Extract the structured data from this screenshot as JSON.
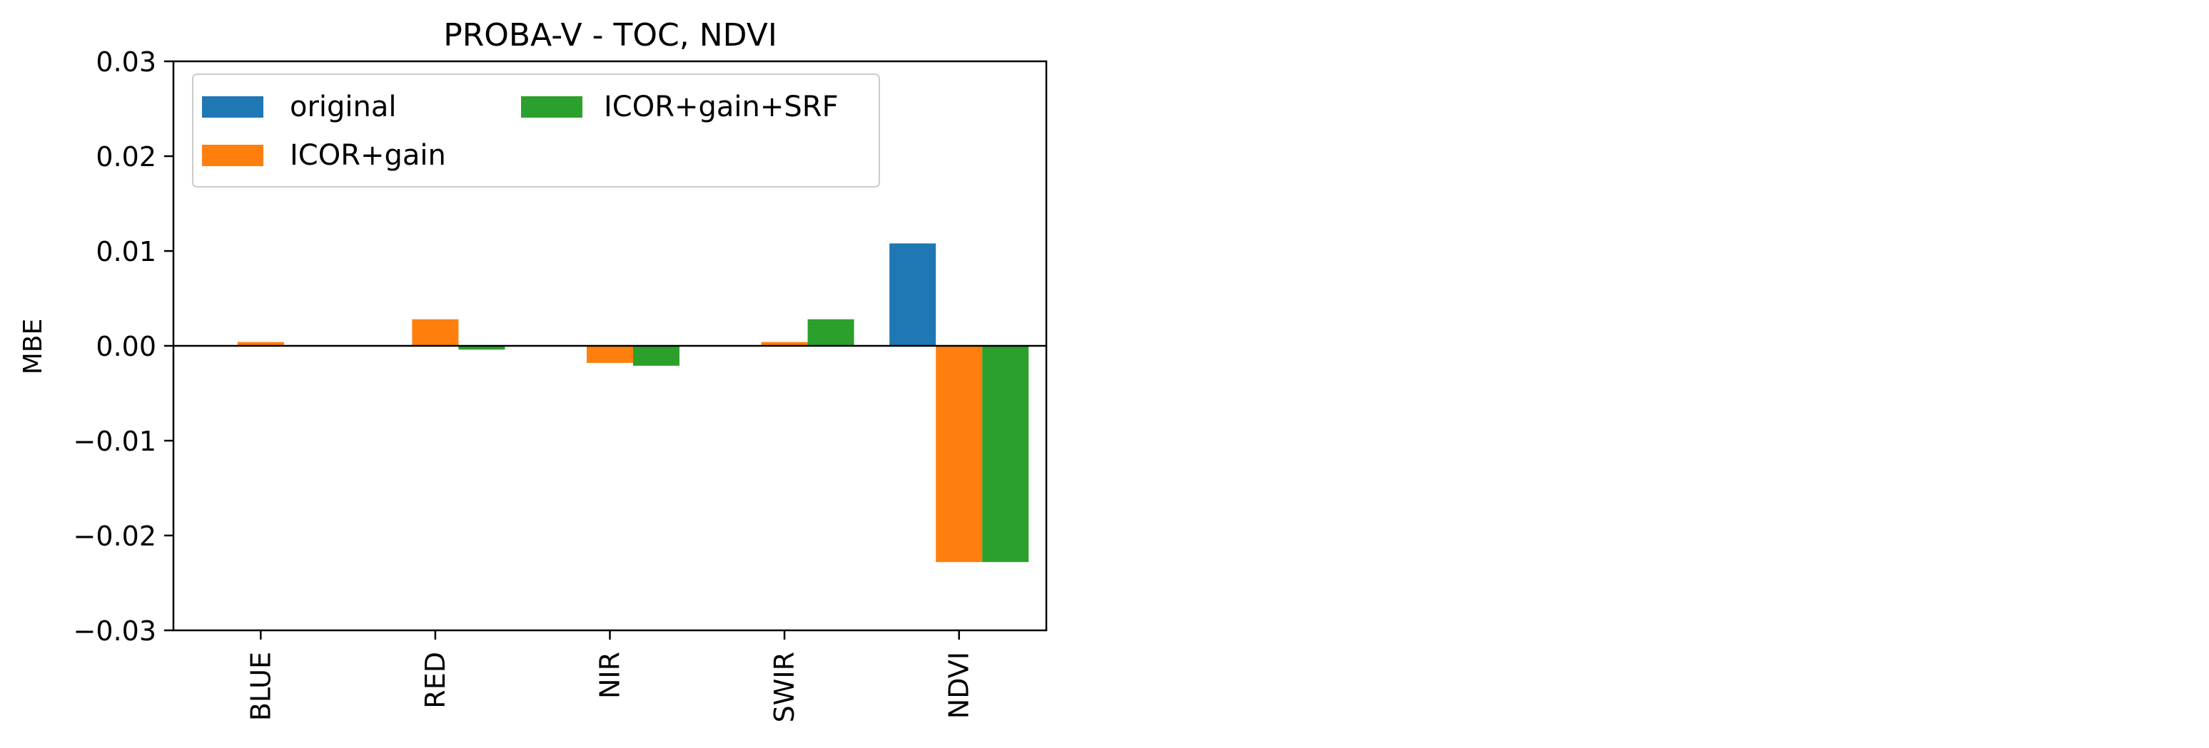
{
  "chart_data": {
    "type": "bar",
    "title": "PROBA-V - TOC, NDVI",
    "xlabel": "",
    "ylabel": "MBE",
    "ylim": [
      -0.03,
      0.03
    ],
    "yticks": [
      0.03,
      0.02,
      0.01,
      0.0,
      -0.01,
      -0.02,
      -0.03
    ],
    "ytick_labels": [
      "0.03",
      "0.02",
      "0.01",
      "0.00",
      "−0.01",
      "−0.02",
      "−0.03"
    ],
    "categories": [
      "BLUE",
      "RED",
      "NIR",
      "SWIR",
      "NDVI"
    ],
    "series": [
      {
        "name": "original",
        "color": "#1f77b4",
        "values": [
          0.0,
          0.0,
          0.0,
          0.0,
          0.0108
        ]
      },
      {
        "name": "ICOR+gain",
        "color": "#ff7f0e",
        "values": [
          0.0004,
          0.0028,
          -0.0018,
          0.0004,
          -0.0228
        ]
      },
      {
        "name": "ICOR+gain+SRF",
        "color": "#2ca02c",
        "values": [
          0.0,
          -0.0004,
          -0.0021,
          0.0028,
          -0.0228
        ]
      }
    ],
    "legend": {
      "position": "top-left",
      "columns": 2,
      "entries": [
        "original",
        "ICOR+gain",
        "ICOR+gain+SRF"
      ]
    },
    "grid": false,
    "zero_line": true
  }
}
